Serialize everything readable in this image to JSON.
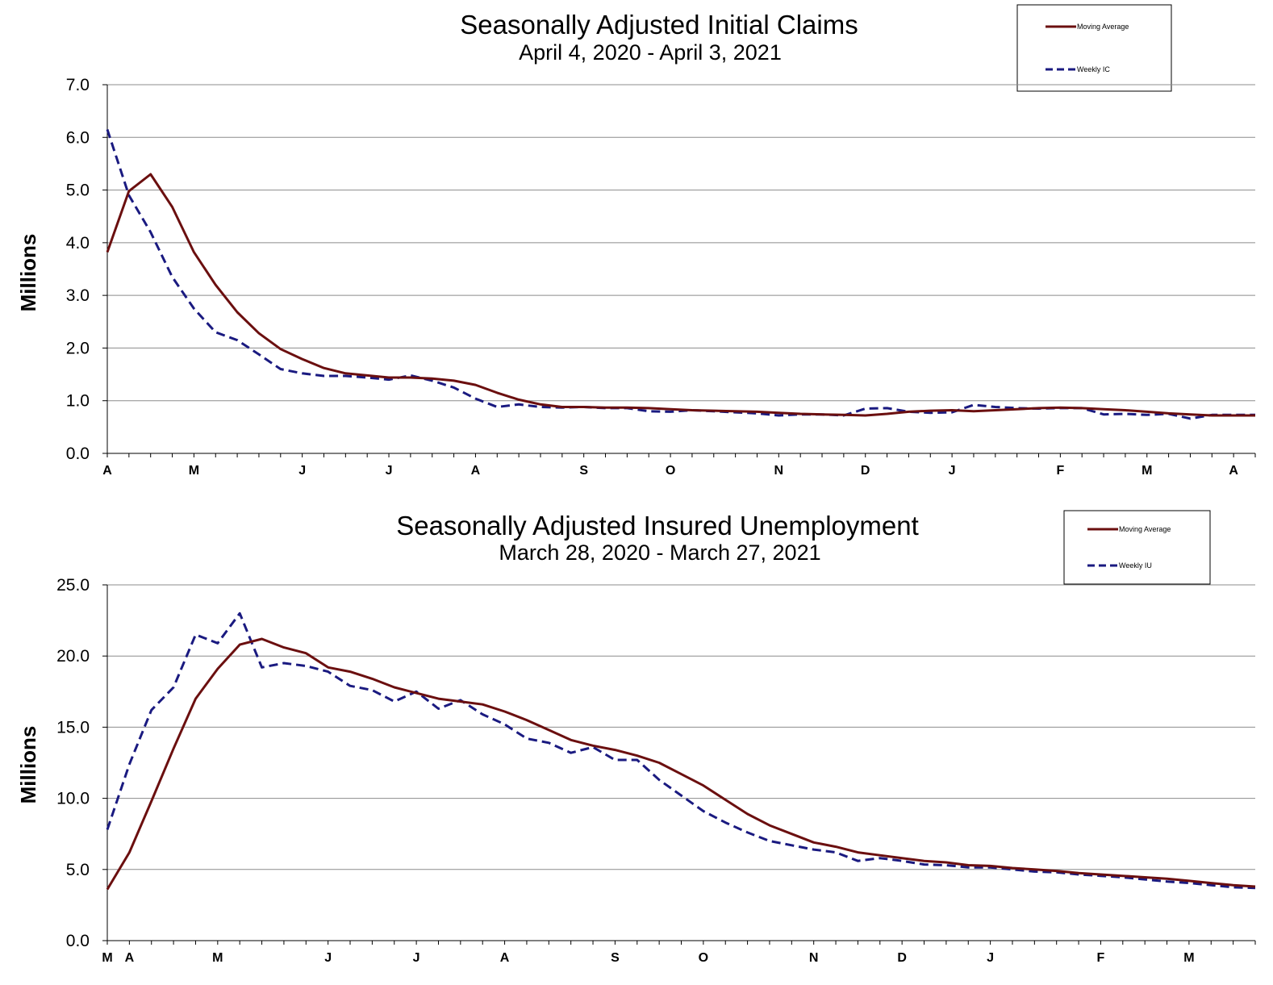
{
  "colors": {
    "moving_average": "#6b0f0f",
    "weekly": "#1a1a80",
    "grid": "#8c8c8c"
  },
  "chart_data": [
    {
      "type": "line",
      "title": "Seasonally Adjusted Initial Claims",
      "subtitle": "April 4, 2020 - April 3, 2021",
      "ylabel": "Millions",
      "ylim": [
        0,
        7
      ],
      "yticks": [
        "0.0",
        "1.0",
        "2.0",
        "3.0",
        "4.0",
        "5.0",
        "6.0",
        "7.0"
      ],
      "xtick_labels": [
        {
          "label": "A",
          "week": 0
        },
        {
          "label": "M",
          "week": 4
        },
        {
          "label": "J",
          "week": 9
        },
        {
          "label": "J",
          "week": 13
        },
        {
          "label": "A",
          "week": 17
        },
        {
          "label": "S",
          "week": 22
        },
        {
          "label": "O",
          "week": 26
        },
        {
          "label": "N",
          "week": 31
        },
        {
          "label": "D",
          "week": 35
        },
        {
          "label": "J",
          "week": 39
        },
        {
          "label": "F",
          "week": 44
        },
        {
          "label": "M",
          "week": 48
        },
        {
          "label": "A",
          "week": 52
        }
      ],
      "grid": true,
      "legend_position": "top-right",
      "series": [
        {
          "name": "Moving Average",
          "style": "solid",
          "values": [
            3.82,
            4.98,
            5.3,
            4.68,
            3.82,
            3.2,
            2.68,
            2.28,
            1.98,
            1.79,
            1.62,
            1.52,
            1.48,
            1.44,
            1.44,
            1.42,
            1.38,
            1.3,
            1.15,
            1.02,
            0.93,
            0.88,
            0.88,
            0.87,
            0.87,
            0.86,
            0.84,
            0.82,
            0.81,
            0.8,
            0.79,
            0.77,
            0.75,
            0.74,
            0.73,
            0.72,
            0.75,
            0.79,
            0.81,
            0.82,
            0.8,
            0.82,
            0.84,
            0.86,
            0.87,
            0.86,
            0.84,
            0.82,
            0.79,
            0.76,
            0.74,
            0.72,
            0.72,
            0.72
          ]
        },
        {
          "name": "Weekly IC",
          "style": "dashed",
          "values": [
            6.15,
            4.9,
            4.2,
            3.35,
            2.75,
            2.3,
            2.15,
            1.88,
            1.6,
            1.52,
            1.47,
            1.47,
            1.44,
            1.4,
            1.48,
            1.38,
            1.25,
            1.04,
            0.88,
            0.93,
            0.88,
            0.87,
            0.88,
            0.86,
            0.86,
            0.8,
            0.79,
            0.82,
            0.8,
            0.78,
            0.76,
            0.72,
            0.74,
            0.74,
            0.72,
            0.85,
            0.86,
            0.79,
            0.77,
            0.78,
            0.92,
            0.88,
            0.86,
            0.85,
            0.86,
            0.86,
            0.74,
            0.75,
            0.73,
            0.75,
            0.66,
            0.73,
            0.73,
            0.73
          ]
        }
      ]
    },
    {
      "type": "line",
      "title": "Seasonally Adjusted Insured Unemployment",
      "subtitle": "March 28, 2020 - March 27, 2021",
      "ylabel": "Millions",
      "ylim": [
        0,
        25
      ],
      "yticks": [
        "0.0",
        "5.0",
        "10.0",
        "15.0",
        "20.0",
        "25.0"
      ],
      "xtick_labels": [
        {
          "label": "M",
          "week": 0
        },
        {
          "label": "A",
          "week": 1
        },
        {
          "label": "M",
          "week": 5
        },
        {
          "label": "J",
          "week": 10
        },
        {
          "label": "J",
          "week": 14
        },
        {
          "label": "A",
          "week": 18
        },
        {
          "label": "S",
          "week": 23
        },
        {
          "label": "O",
          "week": 27
        },
        {
          "label": "N",
          "week": 32
        },
        {
          "label": "D",
          "week": 36
        },
        {
          "label": "J",
          "week": 40
        },
        {
          "label": "F",
          "week": 45
        },
        {
          "label": "M",
          "week": 49
        }
      ],
      "grid": true,
      "legend_position": "top-right",
      "series": [
        {
          "name": "Moving Average",
          "style": "solid",
          "values": [
            3.6,
            6.2,
            9.8,
            13.5,
            17.0,
            19.1,
            20.8,
            21.2,
            20.6,
            20.2,
            19.2,
            18.9,
            18.4,
            17.8,
            17.4,
            17.0,
            16.8,
            16.6,
            16.1,
            15.5,
            14.8,
            14.1,
            13.7,
            13.4,
            13.0,
            12.5,
            11.7,
            10.9,
            9.9,
            8.9,
            8.1,
            7.5,
            6.9,
            6.6,
            6.2,
            6.0,
            5.8,
            5.6,
            5.5,
            5.3,
            5.25,
            5.1,
            5.0,
            4.9,
            4.75,
            4.65,
            4.55,
            4.45,
            4.35,
            4.2,
            4.05,
            3.9,
            3.8
          ]
        },
        {
          "name": "Weekly IU",
          "style": "dashed",
          "values": [
            7.8,
            12.4,
            16.2,
            17.8,
            21.5,
            20.9,
            23.0,
            19.2,
            19.5,
            19.3,
            18.9,
            17.9,
            17.6,
            16.8,
            17.5,
            16.3,
            16.9,
            15.9,
            15.2,
            14.2,
            13.9,
            13.2,
            13.6,
            12.7,
            12.7,
            11.3,
            10.2,
            9.1,
            8.3,
            7.6,
            7.0,
            6.7,
            6.4,
            6.2,
            5.6,
            5.8,
            5.6,
            5.35,
            5.3,
            5.15,
            5.15,
            5.0,
            4.85,
            4.8,
            4.65,
            4.55,
            4.45,
            4.3,
            4.15,
            4.05,
            3.9,
            3.75,
            3.7
          ]
        }
      ]
    }
  ]
}
